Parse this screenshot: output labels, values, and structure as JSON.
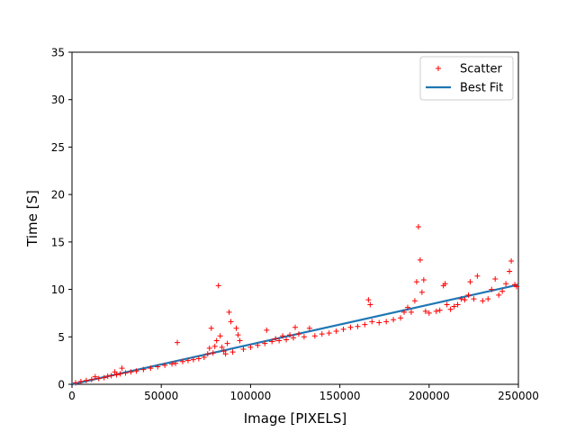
{
  "chart_data": {
    "type": "scatter",
    "title": "",
    "xlabel": "Image [PIXELS]",
    "ylabel": "Time [S]",
    "xlim": [
      0,
      250000
    ],
    "ylim": [
      0,
      35
    ],
    "xticks": [
      0,
      50000,
      100000,
      150000,
      200000,
      250000
    ],
    "xtick_labels": [
      "0",
      "50000",
      "100000",
      "150000",
      "200000",
      "250000"
    ],
    "yticks": [
      0,
      5,
      10,
      15,
      20,
      25,
      30,
      35
    ],
    "ytick_labels": [
      "0",
      "5",
      "10",
      "15",
      "20",
      "25",
      "30",
      "35"
    ],
    "grid": false,
    "legend_position": "top-right",
    "series": [
      {
        "name": "Scatter",
        "kind": "scatter",
        "marker": "+",
        "color": "#ff0000",
        "points": [
          [
            2000,
            0.15
          ],
          [
            5000,
            0.3
          ],
          [
            8000,
            0.4
          ],
          [
            11000,
            0.5
          ],
          [
            13000,
            0.8
          ],
          [
            15000,
            0.6
          ],
          [
            18000,
            0.7
          ],
          [
            20000,
            0.85
          ],
          [
            22000,
            0.9
          ],
          [
            24000,
            1.3
          ],
          [
            25000,
            1.0
          ],
          [
            27000,
            1.1
          ],
          [
            28000,
            1.7
          ],
          [
            30000,
            1.2
          ],
          [
            33000,
            1.3
          ],
          [
            36000,
            1.4
          ],
          [
            40000,
            1.55
          ],
          [
            44000,
            1.7
          ],
          [
            48000,
            1.85
          ],
          [
            52000,
            2.0
          ],
          [
            56000,
            2.15
          ],
          [
            58000,
            2.2
          ],
          [
            59000,
            4.4
          ],
          [
            62000,
            2.4
          ],
          [
            65000,
            2.5
          ],
          [
            68000,
            2.6
          ],
          [
            71000,
            2.7
          ],
          [
            74000,
            2.85
          ],
          [
            76000,
            3.2
          ],
          [
            77000,
            3.8
          ],
          [
            78000,
            5.9
          ],
          [
            79000,
            3.3
          ],
          [
            80000,
            4.0
          ],
          [
            81000,
            4.6
          ],
          [
            82000,
            10.4
          ],
          [
            83000,
            5.1
          ],
          [
            84000,
            3.9
          ],
          [
            85000,
            3.5
          ],
          [
            86000,
            3.2
          ],
          [
            87000,
            4.3
          ],
          [
            88000,
            7.6
          ],
          [
            89000,
            6.6
          ],
          [
            90000,
            3.4
          ],
          [
            92000,
            5.9
          ],
          [
            93000,
            5.2
          ],
          [
            94000,
            4.6
          ],
          [
            96000,
            3.7
          ],
          [
            100000,
            3.9
          ],
          [
            104000,
            4.1
          ],
          [
            108000,
            4.3
          ],
          [
            109000,
            5.7
          ],
          [
            112000,
            4.5
          ],
          [
            114000,
            4.8
          ],
          [
            116000,
            4.6
          ],
          [
            118000,
            5.1
          ],
          [
            120000,
            4.7
          ],
          [
            122000,
            5.2
          ],
          [
            124000,
            4.9
          ],
          [
            125000,
            6.0
          ],
          [
            127000,
            5.3
          ],
          [
            130000,
            5.0
          ],
          [
            133000,
            5.9
          ],
          [
            136000,
            5.1
          ],
          [
            140000,
            5.3
          ],
          [
            144000,
            5.4
          ],
          [
            148000,
            5.6
          ],
          [
            152000,
            5.8
          ],
          [
            156000,
            6.0
          ],
          [
            160000,
            6.1
          ],
          [
            164000,
            6.3
          ],
          [
            166000,
            8.9
          ],
          [
            167000,
            8.4
          ],
          [
            168000,
            6.6
          ],
          [
            172000,
            6.5
          ],
          [
            176000,
            6.6
          ],
          [
            180000,
            6.8
          ],
          [
            184000,
            7.0
          ],
          [
            186000,
            7.6
          ],
          [
            188000,
            8.1
          ],
          [
            190000,
            7.6
          ],
          [
            192000,
            8.8
          ],
          [
            193000,
            10.8
          ],
          [
            194000,
            16.6
          ],
          [
            195000,
            13.1
          ],
          [
            196000,
            9.7
          ],
          [
            197000,
            11.0
          ],
          [
            198000,
            7.7
          ],
          [
            200000,
            7.5
          ],
          [
            204000,
            7.7
          ],
          [
            206000,
            7.8
          ],
          [
            208000,
            10.4
          ],
          [
            209000,
            10.6
          ],
          [
            210000,
            8.4
          ],
          [
            212000,
            7.9
          ],
          [
            214000,
            8.2
          ],
          [
            216000,
            8.4
          ],
          [
            218000,
            9.0
          ],
          [
            220000,
            8.9
          ],
          [
            222000,
            9.4
          ],
          [
            223000,
            10.8
          ],
          [
            225000,
            9.0
          ],
          [
            227000,
            11.4
          ],
          [
            230000,
            8.8
          ],
          [
            233000,
            9.0
          ],
          [
            235000,
            10.0
          ],
          [
            237000,
            11.1
          ],
          [
            239000,
            9.4
          ],
          [
            241000,
            9.8
          ],
          [
            243000,
            10.6
          ],
          [
            245000,
            11.9
          ],
          [
            246000,
            13.0
          ],
          [
            248000,
            10.5
          ],
          [
            249000,
            10.3
          ]
        ]
      },
      {
        "name": "Best Fit",
        "kind": "line",
        "color": "#1f77b4",
        "points": [
          [
            0,
            0
          ],
          [
            250000,
            10.5
          ]
        ]
      }
    ]
  }
}
